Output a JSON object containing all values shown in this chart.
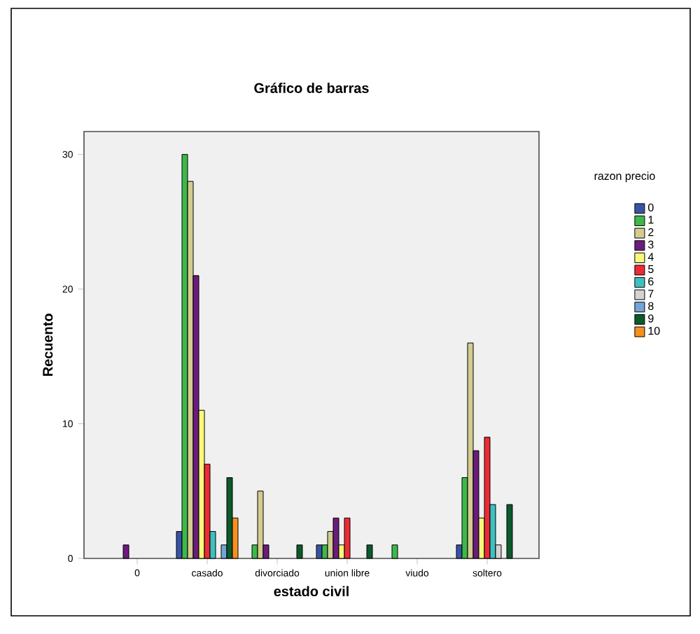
{
  "chart_data": {
    "type": "bar",
    "title": "Gráfico de barras",
    "xlabel": "estado civil",
    "ylabel": "Recuento",
    "legend_title": "razon precio",
    "categories": [
      "0",
      "casado",
      "divorciado",
      "union libre",
      "viudo",
      "soltero"
    ],
    "series": [
      {
        "name": "0",
        "color": "#3953a4",
        "values": [
          null,
          2,
          null,
          1,
          null,
          1
        ]
      },
      {
        "name": "1",
        "color": "#3cb94a",
        "values": [
          null,
          30,
          1,
          1,
          1,
          6
        ]
      },
      {
        "name": "2",
        "color": "#d2cc8f",
        "values": [
          null,
          28,
          5,
          2,
          null,
          16
        ]
      },
      {
        "name": "3",
        "color": "#6b1c7c",
        "values": [
          1,
          21,
          1,
          3,
          null,
          8
        ]
      },
      {
        "name": "4",
        "color": "#fbf97a",
        "values": [
          null,
          11,
          null,
          1,
          null,
          3
        ]
      },
      {
        "name": "5",
        "color": "#ec2b35",
        "values": [
          null,
          7,
          null,
          3,
          null,
          9
        ]
      },
      {
        "name": "6",
        "color": "#3fc0c0",
        "values": [
          null,
          2,
          null,
          null,
          null,
          4
        ]
      },
      {
        "name": "7",
        "color": "#d3d3d3",
        "values": [
          null,
          null,
          null,
          null,
          null,
          1
        ]
      },
      {
        "name": "8",
        "color": "#74a5d6",
        "values": [
          null,
          1,
          null,
          null,
          null,
          null
        ]
      },
      {
        "name": "9",
        "color": "#0b5a2a",
        "values": [
          null,
          6,
          1,
          1,
          null,
          4
        ]
      },
      {
        "name": "10",
        "color": "#f6901e",
        "values": [
          null,
          3,
          null,
          null,
          null,
          null
        ]
      }
    ],
    "ylim": [
      0,
      31.7
    ],
    "yticks": [
      0,
      10,
      20,
      30
    ],
    "legend": "right",
    "grid": false
  }
}
